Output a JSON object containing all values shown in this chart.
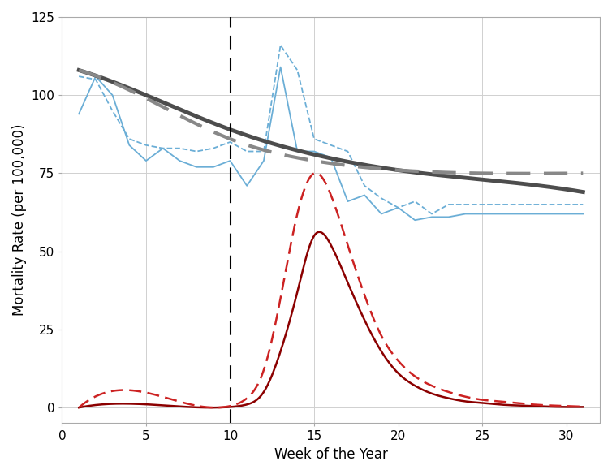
{
  "weeks": [
    1,
    2,
    3,
    4,
    5,
    6,
    7,
    8,
    9,
    10,
    11,
    12,
    13,
    14,
    15,
    16,
    17,
    18,
    19,
    20,
    21,
    22,
    23,
    24,
    25,
    26,
    27,
    28,
    29,
    30,
    31
  ],
  "blue_solid": [
    94,
    106,
    100,
    84,
    79,
    83,
    79,
    77,
    77,
    79,
    71,
    79,
    109,
    82,
    82,
    80,
    66,
    68,
    62,
    64,
    60,
    61,
    61,
    62,
    62,
    62,
    62,
    62,
    62,
    62,
    62
  ],
  "blue_dashed": [
    106,
    105,
    95,
    86,
    84,
    83,
    83,
    82,
    83,
    85,
    82,
    82,
    116,
    108,
    86,
    84,
    82,
    71,
    67,
    64,
    66,
    62,
    65,
    65,
    65,
    65,
    65,
    65,
    65,
    65,
    65
  ],
  "gray_solid_knots": [
    1,
    5,
    10,
    15,
    20,
    25,
    31
  ],
  "gray_solid_vals": [
    108,
    100,
    89,
    81,
    76,
    73,
    69
  ],
  "gray_dashed_knots": [
    1,
    5,
    10,
    15,
    20,
    25,
    31
  ],
  "gray_dashed_vals": [
    108,
    99,
    86,
    79,
    76,
    75,
    75
  ],
  "red_solid_knots": [
    1,
    9,
    10,
    11,
    12,
    13,
    14,
    15,
    16,
    17,
    18,
    19,
    20,
    21,
    22,
    23,
    24,
    25,
    26,
    27,
    28,
    29,
    30,
    31
  ],
  "red_solid_vals": [
    0,
    0,
    0.2,
    1.0,
    5,
    18,
    37,
    55,
    52,
    40,
    28,
    18,
    11,
    7,
    4.5,
    3,
    2,
    1.5,
    1.0,
    0.7,
    0.5,
    0.3,
    0.2,
    0.2
  ],
  "red_dashed_knots": [
    1,
    9,
    10,
    11,
    12,
    13,
    14,
    15,
    16,
    17,
    18,
    19,
    20,
    21,
    22,
    23,
    24,
    25,
    26,
    27,
    28,
    29,
    30,
    31
  ],
  "red_dashed_vals": [
    0,
    0,
    0.5,
    3,
    12,
    35,
    62,
    75,
    68,
    52,
    36,
    23,
    15,
    10,
    7,
    5,
    3.5,
    2.5,
    2.0,
    1.5,
    1.0,
    0.7,
    0.5,
    0.3
  ],
  "ylim": [
    -5,
    125
  ],
  "xlim": [
    0.5,
    32
  ],
  "xticks": [
    0,
    5,
    10,
    15,
    20,
    25,
    30
  ],
  "yticks": [
    0,
    25,
    50,
    75,
    100,
    125
  ],
  "xlabel": "Week of the Year",
  "ylabel": "Mortality Rate (per 100,000)",
  "vline_x": 10,
  "blue_solid_color": "#6baed6",
  "blue_dashed_color": "#6baed6",
  "gray_solid_color": "#4d4d4d",
  "gray_dashed_color": "#888888",
  "red_solid_color": "#8b0000",
  "red_dashed_color": "#cc2222",
  "background_color": "#ffffff",
  "grid_color": "#d0d0d0"
}
